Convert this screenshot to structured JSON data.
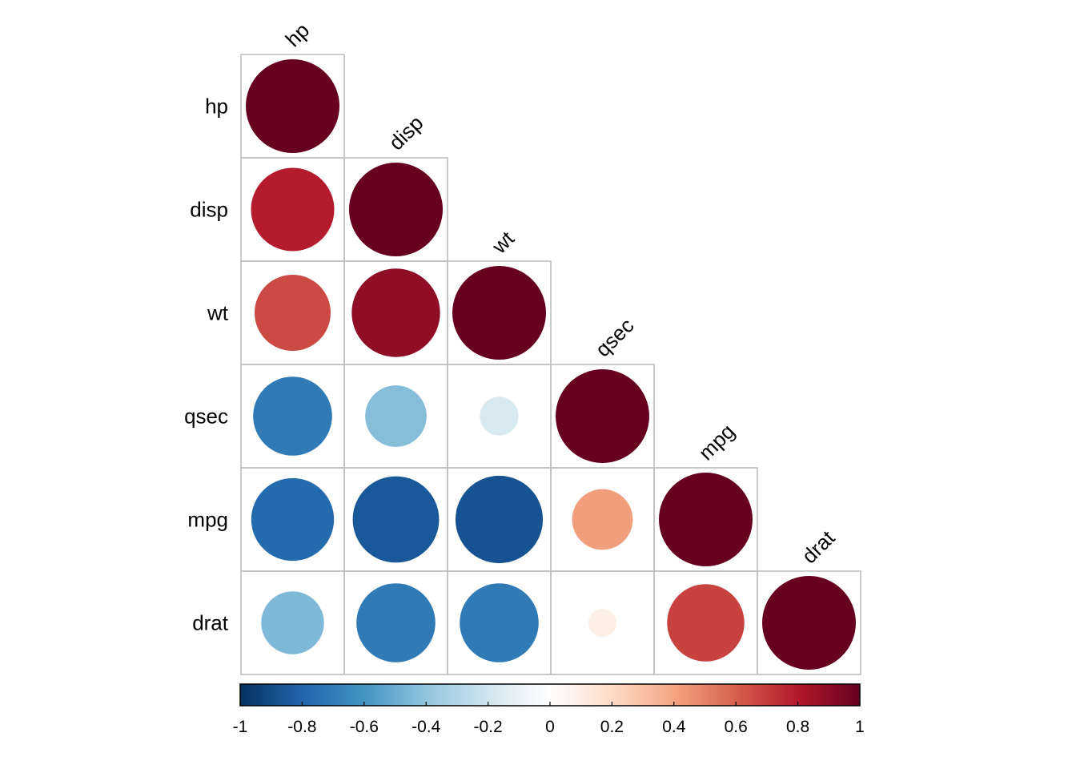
{
  "chart_data": {
    "type": "heatmap",
    "style": "correlation-matrix, lower triangle, circles sized by |r|",
    "variables": [
      "hp",
      "disp",
      "wt",
      "qsec",
      "mpg",
      "drat"
    ],
    "matrix_lower": [
      [
        1.0
      ],
      [
        0.79,
        1.0
      ],
      [
        0.66,
        0.89,
        1.0
      ],
      [
        -0.71,
        -0.43,
        -0.17,
        1.0
      ],
      [
        -0.78,
        -0.85,
        -0.87,
        0.42,
        1.0
      ],
      [
        -0.45,
        -0.71,
        -0.71,
        0.09,
        0.68,
        1.0
      ]
    ],
    "colorbar": {
      "range": [
        -1,
        1
      ],
      "ticks": [
        "-1",
        "-0.8",
        "-0.6",
        "-0.4",
        "-0.2",
        "0",
        "0.2",
        "0.4",
        "0.6",
        "0.8",
        "1"
      ],
      "colors": [
        "#053061",
        "#2166AC",
        "#4393C3",
        "#92C5DE",
        "#D1E5F0",
        "#FFFFFF",
        "#FDDBC7",
        "#F4A582",
        "#D6604D",
        "#B2182B",
        "#67001F"
      ]
    },
    "grid": true,
    "legend": "bottom"
  }
}
